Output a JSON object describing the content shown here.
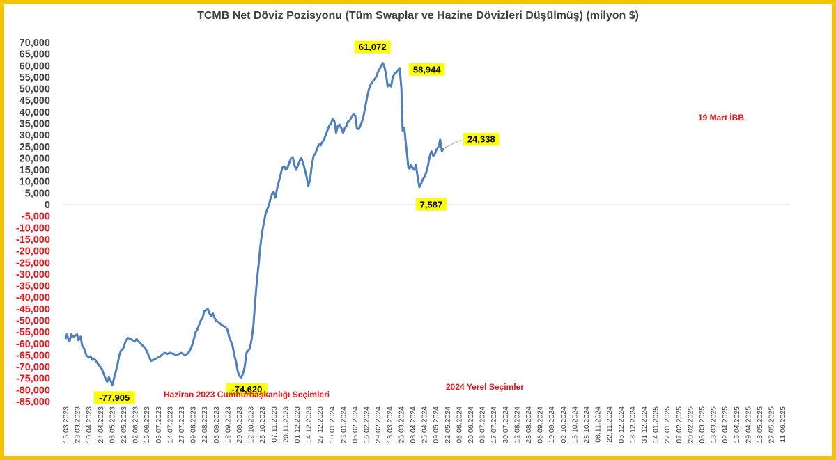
{
  "chart_data": {
    "type": "line",
    "title": "TCMB Net Döviz Pozisyonu (Tüm Swaplar ve Hazine Dövizleri Düşülmüş) (milyon $)",
    "ylim": [
      -85000,
      70000
    ],
    "ytick_step": 5000,
    "colors": {
      "line": "#4f7fc0",
      "negative_ticks": "#e8141b",
      "positive_ticks": "#404040",
      "highlight": "#ffff00",
      "frame": "#f5c400"
    },
    "grid": false,
    "legend": "none",
    "x_ticks": [
      "15.03.2023",
      "28.03.2023",
      "10.04.2023",
      "24.04.2023",
      "08.05.2023",
      "22.05.2023",
      "02.06.2023",
      "15.06.2023",
      "03.07.2023",
      "14.07.2023",
      "27.07.2023",
      "09.08.2023",
      "22.08.2023",
      "05.09.2023",
      "18.09.2023",
      "29.09.2023",
      "12.10.2023",
      "25.10.2023",
      "07.11.2023",
      "20.11.2023",
      "01.12.2023",
      "14.12.2023",
      "27.12.2023",
      "10.01.2024",
      "23.01.2024",
      "05.02.2024",
      "16.02.2024",
      "29.02.2024",
      "13.03.2024",
      "26.03.2024",
      "08.04.2024",
      "25.04.2024",
      "09.05.2024",
      "22.05.2024",
      "06.06.2024",
      "20.06.2024",
      "03.07.2024",
      "17.07.2024",
      "30.07.2024",
      "12.08.2024",
      "23.08.2024",
      "06.09.2024",
      "19.09.2024",
      "02.10.2024",
      "15.10.2024",
      "28.10.2024",
      "08.11.2024",
      "22.11.2024",
      "05.12.2024",
      "18.12.2024",
      "31.12.2024",
      "14.01.2025",
      "27.01.2025",
      "07.02.2025",
      "20.02.2025",
      "05.03.2025",
      "18.03.2025",
      "02.04.2025",
      "15.04.2025",
      "29.04.2025",
      "13.05.2025",
      "27.05.2025",
      "11.06.2025"
    ],
    "series": [
      {
        "name": "",
        "points": [
          [
            0,
            -58000
          ],
          [
            0.12,
            -56000
          ],
          [
            0.25,
            -58000
          ],
          [
            0.35,
            -59000
          ],
          [
            0.5,
            -56000
          ],
          [
            0.7,
            -57000
          ],
          [
            0.85,
            -56500
          ],
          [
            1,
            -56000
          ],
          [
            1.12,
            -58500
          ],
          [
            1.3,
            -57000
          ],
          [
            1.45,
            -61000
          ],
          [
            1.6,
            -62000
          ],
          [
            1.8,
            -65000
          ],
          [
            2,
            -66000
          ],
          [
            2.15,
            -65500
          ],
          [
            2.35,
            -67000
          ],
          [
            2.5,
            -66500
          ],
          [
            2.7,
            -68000
          ],
          [
            2.85,
            -69000
          ],
          [
            3,
            -70000
          ],
          [
            3.15,
            -71000
          ],
          [
            3.3,
            -73000
          ],
          [
            3.45,
            -75000
          ],
          [
            3.6,
            -76500
          ],
          [
            3.75,
            -74500
          ],
          [
            3.9,
            -76000
          ],
          [
            4.05,
            -77905
          ],
          [
            4.2,
            -75000
          ],
          [
            4.35,
            -72000
          ],
          [
            4.5,
            -69000
          ],
          [
            4.65,
            -65000
          ],
          [
            4.8,
            -63000
          ],
          [
            5,
            -62000
          ],
          [
            5.2,
            -59000
          ],
          [
            5.4,
            -57500
          ],
          [
            5.6,
            -58000
          ],
          [
            5.8,
            -58500
          ],
          [
            6,
            -59000
          ],
          [
            6.15,
            -58000
          ],
          [
            6.3,
            -59000
          ],
          [
            6.5,
            -60000
          ],
          [
            6.7,
            -61000
          ],
          [
            6.9,
            -62000
          ],
          [
            7.1,
            -64000
          ],
          [
            7.25,
            -66000
          ],
          [
            7.4,
            -67500
          ],
          [
            7.6,
            -67000
          ],
          [
            7.8,
            -66500
          ],
          [
            8,
            -66000
          ],
          [
            8.2,
            -65500
          ],
          [
            8.4,
            -64500
          ],
          [
            8.6,
            -64000
          ],
          [
            8.8,
            -64500
          ],
          [
            9,
            -64000
          ],
          [
            9.2,
            -64200
          ],
          [
            9.4,
            -64500
          ],
          [
            9.6,
            -65000
          ],
          [
            9.8,
            -64500
          ],
          [
            10,
            -64000
          ],
          [
            10.2,
            -64500
          ],
          [
            10.35,
            -65000
          ],
          [
            10.5,
            -64500
          ],
          [
            10.7,
            -63500
          ],
          [
            10.85,
            -62000
          ],
          [
            11,
            -60000
          ],
          [
            11.15,
            -57000
          ],
          [
            11.25,
            -55000
          ],
          [
            11.4,
            -54000
          ],
          [
            11.55,
            -52000
          ],
          [
            11.7,
            -50000
          ],
          [
            11.85,
            -49000
          ],
          [
            12,
            -46000
          ],
          [
            12.15,
            -45500
          ],
          [
            12.3,
            -45000
          ],
          [
            12.45,
            -47000
          ],
          [
            12.6,
            -48000
          ],
          [
            12.75,
            -47000
          ],
          [
            12.9,
            -49000
          ],
          [
            13,
            -50000
          ],
          [
            13.15,
            -50500
          ],
          [
            13.3,
            -51000
          ],
          [
            13.5,
            -52000
          ],
          [
            13.7,
            -52500
          ],
          [
            13.85,
            -53000
          ],
          [
            14,
            -54000
          ],
          [
            14.15,
            -57000
          ],
          [
            14.3,
            -59000
          ],
          [
            14.45,
            -61000
          ],
          [
            14.6,
            -65000
          ],
          [
            14.75,
            -68000
          ],
          [
            14.9,
            -72000
          ],
          [
            15.05,
            -74000
          ],
          [
            15.2,
            -74620
          ],
          [
            15.35,
            -73000
          ],
          [
            15.5,
            -70000
          ],
          [
            15.65,
            -64000
          ],
          [
            15.8,
            -63000
          ],
          [
            15.95,
            -62000
          ],
          [
            16.1,
            -58000
          ],
          [
            16.25,
            -52000
          ],
          [
            16.4,
            -42000
          ],
          [
            16.55,
            -33000
          ],
          [
            16.7,
            -26000
          ],
          [
            16.85,
            -18000
          ],
          [
            17,
            -12000
          ],
          [
            17.15,
            -8000
          ],
          [
            17.3,
            -4000
          ],
          [
            17.45,
            -2000
          ],
          [
            17.6,
            0
          ],
          [
            17.75,
            3000
          ],
          [
            17.9,
            5000
          ],
          [
            18,
            5500
          ],
          [
            18.15,
            3000
          ],
          [
            18.3,
            7000
          ],
          [
            18.45,
            10000
          ],
          [
            18.6,
            13000
          ],
          [
            18.75,
            16000
          ],
          [
            18.9,
            16500
          ],
          [
            19.05,
            15000
          ],
          [
            19.2,
            16000
          ],
          [
            19.35,
            18000
          ],
          [
            19.5,
            20000
          ],
          [
            19.65,
            20500
          ],
          [
            19.8,
            17000
          ],
          [
            19.95,
            15000
          ],
          [
            20.1,
            17000
          ],
          [
            20.25,
            19000
          ],
          [
            20.4,
            20000
          ],
          [
            20.55,
            18000
          ],
          [
            20.7,
            15000
          ],
          [
            20.85,
            12000
          ],
          [
            21,
            8000
          ],
          [
            21.15,
            11000
          ],
          [
            21.3,
            17000
          ],
          [
            21.45,
            21000
          ],
          [
            21.6,
            22000
          ],
          [
            21.75,
            24000
          ],
          [
            21.9,
            26000
          ],
          [
            22.05,
            25500
          ],
          [
            22.2,
            27000
          ],
          [
            22.35,
            28000
          ],
          [
            22.5,
            30000
          ],
          [
            22.65,
            32000
          ],
          [
            22.8,
            34000
          ],
          [
            22.95,
            35000
          ],
          [
            23.1,
            37000
          ],
          [
            23.25,
            36000
          ],
          [
            23.4,
            31000
          ],
          [
            23.55,
            34000
          ],
          [
            23.7,
            34500
          ],
          [
            23.85,
            33000
          ],
          [
            24,
            31000
          ],
          [
            24.15,
            33000
          ],
          [
            24.3,
            34000
          ],
          [
            24.45,
            36000
          ],
          [
            24.6,
            36500
          ],
          [
            24.75,
            38000
          ],
          [
            24.9,
            39000
          ],
          [
            25.05,
            38500
          ],
          [
            25.2,
            33000
          ],
          [
            25.35,
            32500
          ],
          [
            25.5,
            34000
          ],
          [
            25.65,
            36000
          ],
          [
            25.8,
            39000
          ],
          [
            25.95,
            43000
          ],
          [
            26.1,
            47000
          ],
          [
            26.25,
            50000
          ],
          [
            26.4,
            52000
          ],
          [
            26.55,
            53000
          ],
          [
            26.7,
            54000
          ],
          [
            26.85,
            55000
          ],
          [
            27,
            57000
          ],
          [
            27.15,
            58500
          ],
          [
            27.3,
            60000
          ],
          [
            27.45,
            61072
          ],
          [
            27.6,
            59000
          ],
          [
            27.75,
            55000
          ],
          [
            27.85,
            51000
          ],
          [
            28,
            52000
          ],
          [
            28.15,
            51000
          ],
          [
            28.3,
            55000
          ],
          [
            28.45,
            56500
          ],
          [
            28.6,
            57000
          ],
          [
            28.75,
            58000
          ],
          [
            28.9,
            58944
          ],
          [
            29.05,
            50000
          ],
          [
            29.15,
            32000
          ],
          [
            29.3,
            33000
          ],
          [
            29.4,
            28000
          ],
          [
            29.55,
            21000
          ],
          [
            29.65,
            16000
          ],
          [
            29.75,
            15500
          ],
          [
            29.85,
            17000
          ],
          [
            30,
            16000
          ],
          [
            30.15,
            15000
          ],
          [
            30.3,
            17000
          ],
          [
            30.45,
            12000
          ],
          [
            30.6,
            7587
          ],
          [
            30.75,
            9000
          ],
          [
            30.9,
            11000
          ],
          [
            31.05,
            12000
          ],
          [
            31.2,
            14000
          ],
          [
            31.35,
            17000
          ],
          [
            31.5,
            21000
          ],
          [
            31.65,
            23000
          ],
          [
            31.8,
            21000
          ],
          [
            31.95,
            22000
          ],
          [
            32.1,
            24000
          ],
          [
            32.25,
            25000
          ],
          [
            32.4,
            28000
          ],
          [
            32.55,
            23000
          ],
          [
            32.7,
            24338
          ]
        ]
      }
    ],
    "value_labels": [
      {
        "text": "-77,905",
        "id": "min2023"
      },
      {
        "text": "-74,620",
        "id": "min2024"
      },
      {
        "text": "61,072",
        "id": "peak"
      },
      {
        "text": "58,944",
        "id": "prebreak"
      },
      {
        "text": "7,587",
        "id": "trough"
      },
      {
        "text": "24,338",
        "id": "last"
      }
    ],
    "annotations": [
      {
        "text": "Haziran 2023 Cumhurbaşkanlığı Seçimleri",
        "id": "ann2023"
      },
      {
        "text": "2024 Yerel Seçimler",
        "id": "ann2024"
      },
      {
        "text": "19 Mart İBB",
        "id": "annIBB"
      }
    ]
  }
}
